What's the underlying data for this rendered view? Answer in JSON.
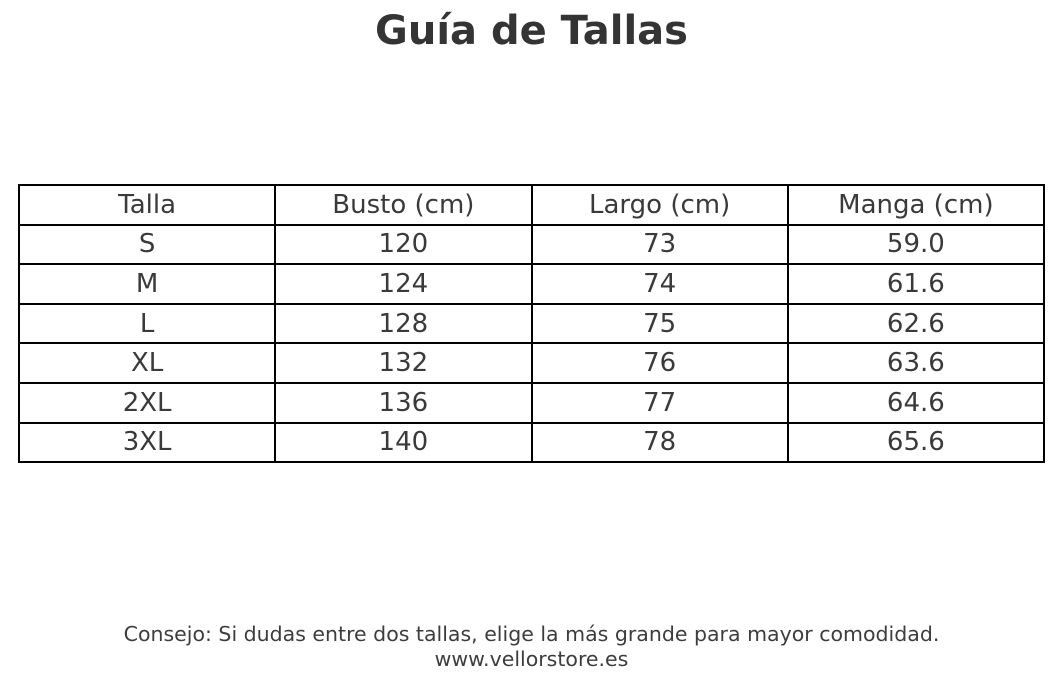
{
  "page": {
    "title": "Guía de Tallas",
    "footer": {
      "advice": "Consejo: Si dudas entre dos tallas, elige la más grande para mayor comodidad.",
      "website": "www.vellorstore.es"
    }
  },
  "size_table": {
    "headers": [
      "Talla",
      "Busto (cm)",
      "Largo (cm)",
      "Manga (cm)"
    ],
    "rows": [
      [
        "S",
        "120",
        "73",
        "59.0"
      ],
      [
        "M",
        "124",
        "74",
        "61.6"
      ],
      [
        "L",
        "128",
        "75",
        "62.6"
      ],
      [
        "XL",
        "132",
        "76",
        "63.6"
      ],
      [
        "2XL",
        "136",
        "77",
        "64.6"
      ],
      [
        "3XL",
        "140",
        "78",
        "65.6"
      ]
    ]
  },
  "colors": {
    "background": "#ffffff",
    "text": "#3a3a3a",
    "table_border": "#000000"
  }
}
